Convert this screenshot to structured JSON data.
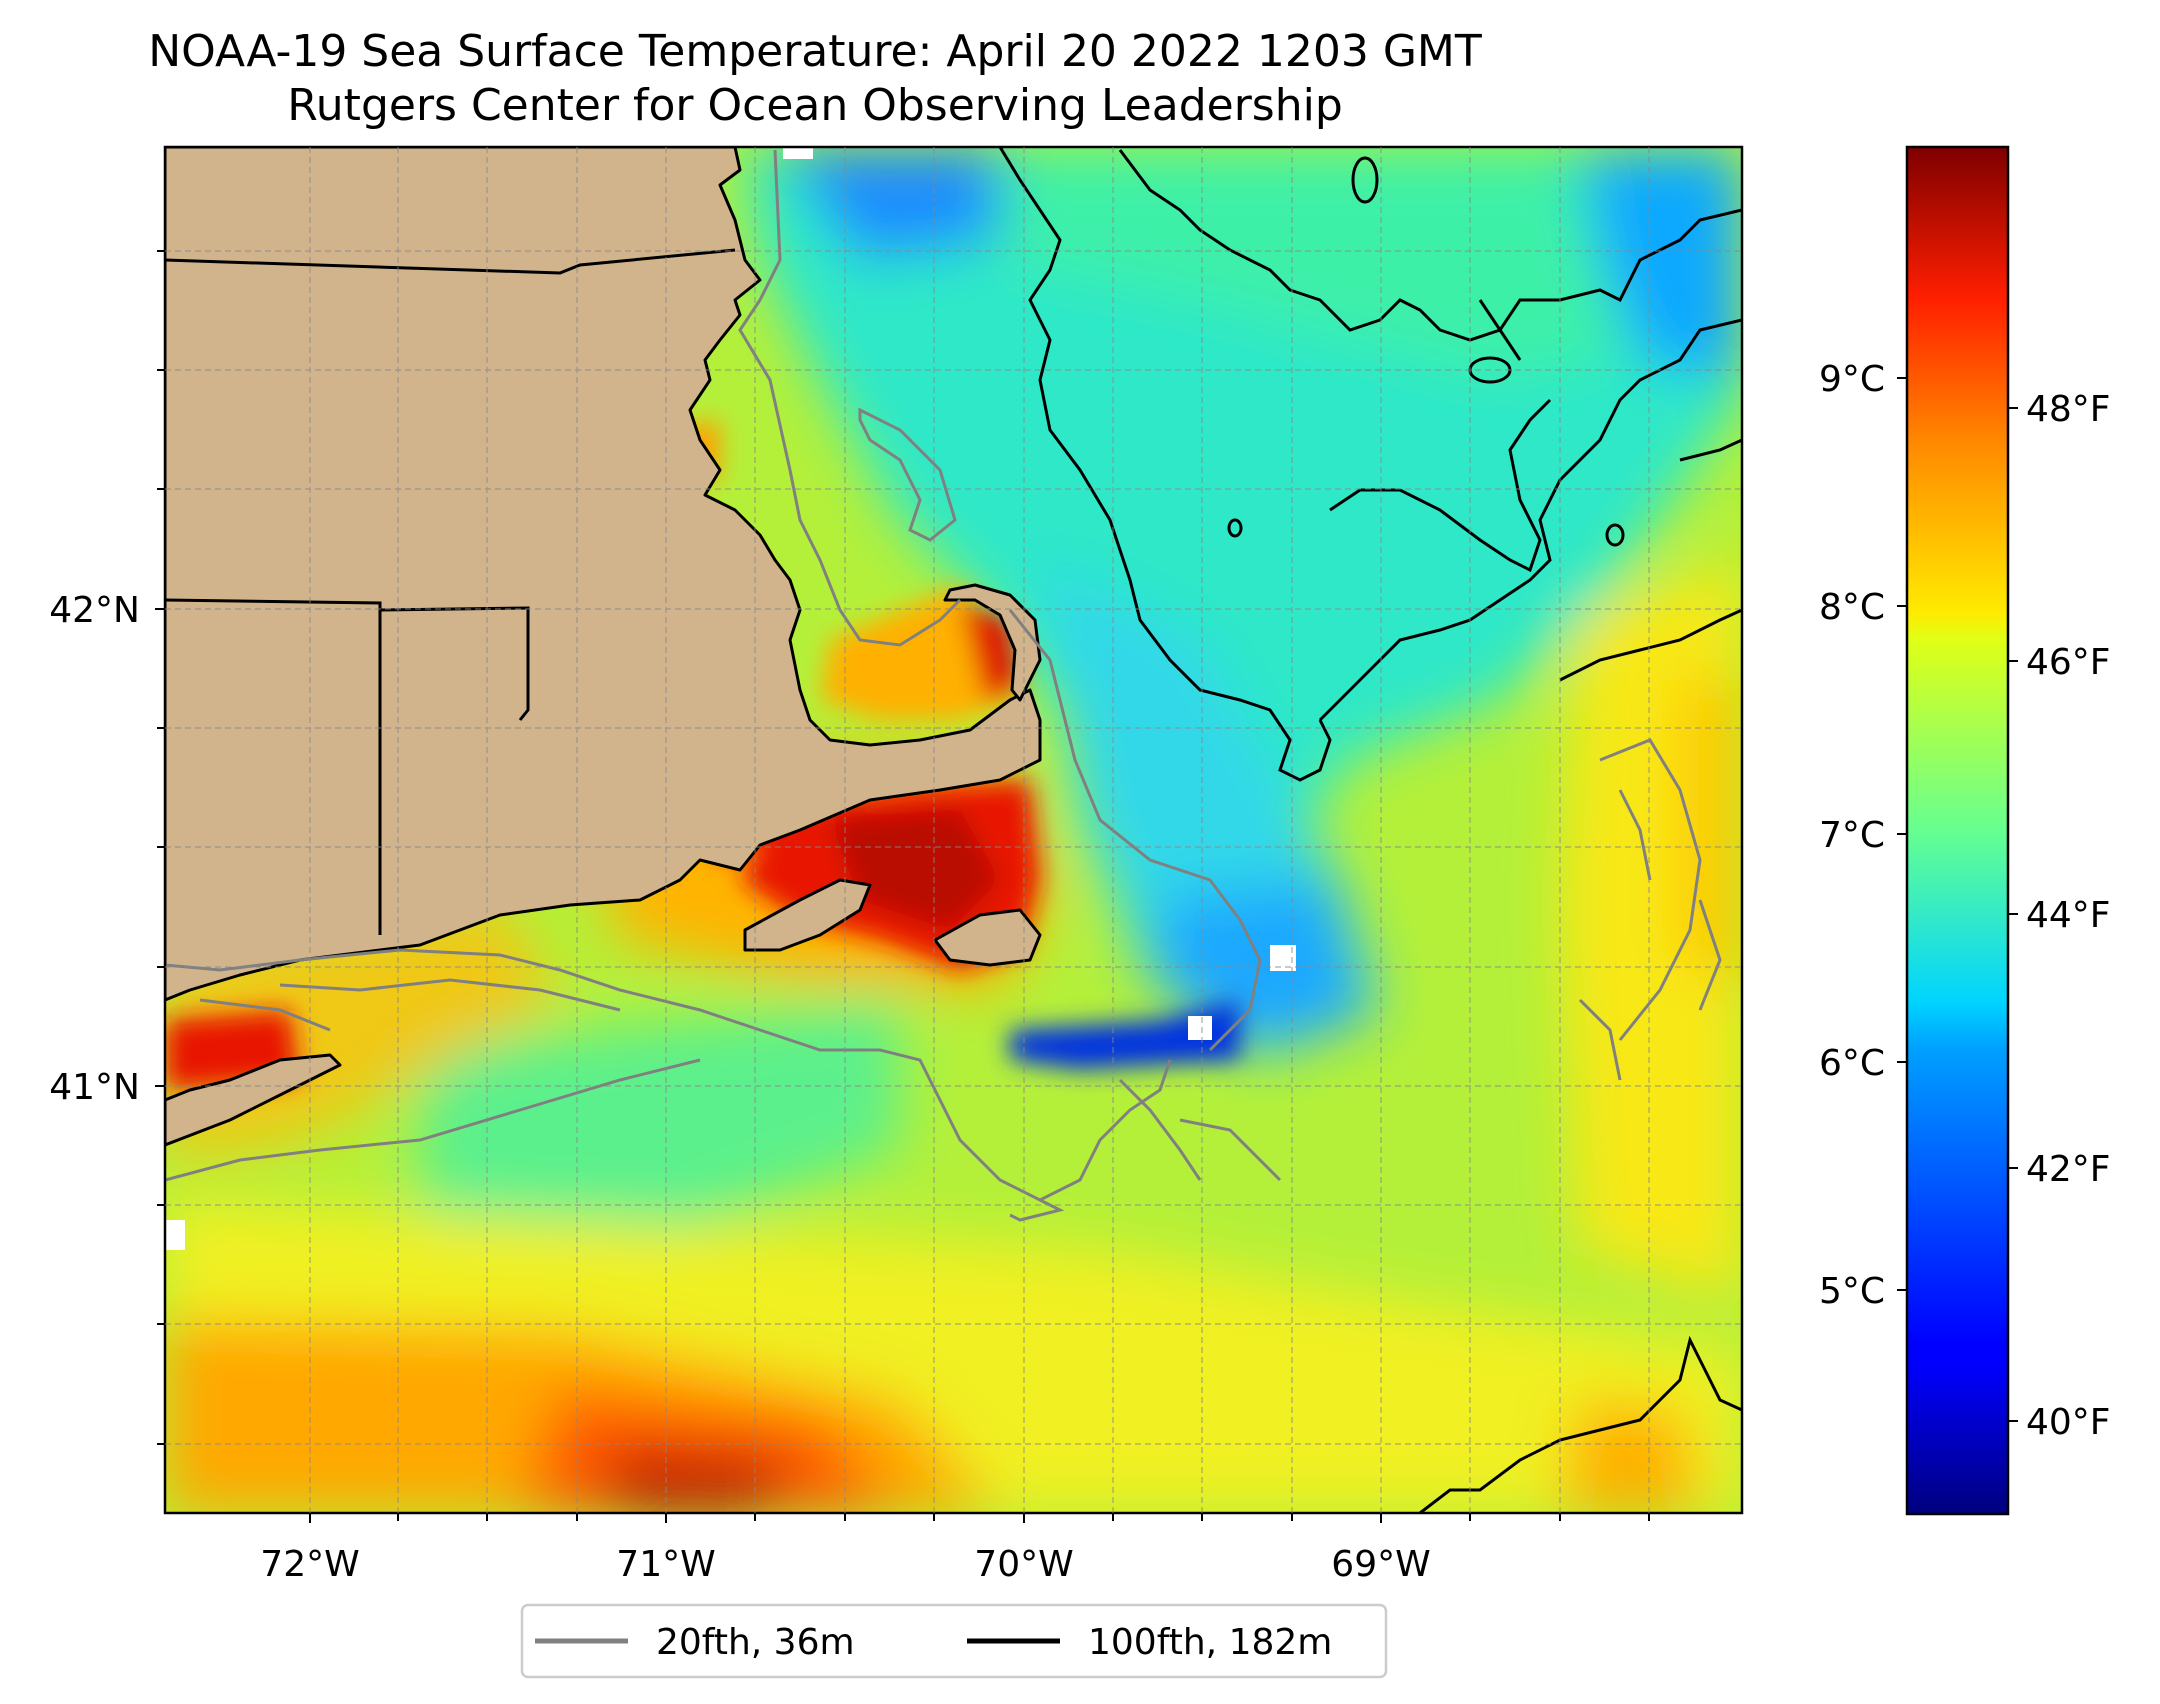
{
  "title": {
    "line1": "NOAA-19 Sea Surface Temperature: April 20 2022 1203 GMT",
    "line2": "Rutgers Center for Ocean Observing Leadership"
  },
  "map": {
    "x_ticks": [
      "72°W",
      "71°W",
      "70°W",
      "69°W"
    ],
    "y_ticks": [
      "42°N",
      "41°N"
    ],
    "land_color": "#d2b48c",
    "gridlines": true
  },
  "colorbar": {
    "colormap": "jet",
    "celsius_ticks": [
      "9°C",
      "8°C",
      "7°C",
      "6°C",
      "5°C"
    ],
    "fahrenheit_ticks": [
      "48°F",
      "46°F",
      "44°F",
      "42°F",
      "40°F"
    ]
  },
  "legend": {
    "items": [
      {
        "label": "20fth, 36m",
        "color": "#808080"
      },
      {
        "label": "100fth, 182m",
        "color": "#000000"
      }
    ]
  },
  "chart_data": {
    "type": "heatmap",
    "title": "NOAA-19 Sea Surface Temperature: April 20 2022 1203 GMT",
    "subtitle": "Rutgers Center for Ocean Observing Leadership",
    "x_ticks": [
      "72°W",
      "71°W",
      "70°W",
      "69°W"
    ],
    "y_ticks": [
      "42°N",
      "41°N"
    ],
    "xlim": [
      -72.4,
      -68.0
    ],
    "ylim": [
      40.15,
      42.97
    ],
    "colorbar_range_c": [
      4.0,
      10.0
    ],
    "colorbar_ticks_c": [
      5,
      6,
      7,
      8,
      9
    ],
    "colorbar_ticks_f": [
      40,
      42,
      44,
      46,
      48
    ],
    "legend": [
      "20fth, 36m",
      "100fth, 182m"
    ]
  }
}
